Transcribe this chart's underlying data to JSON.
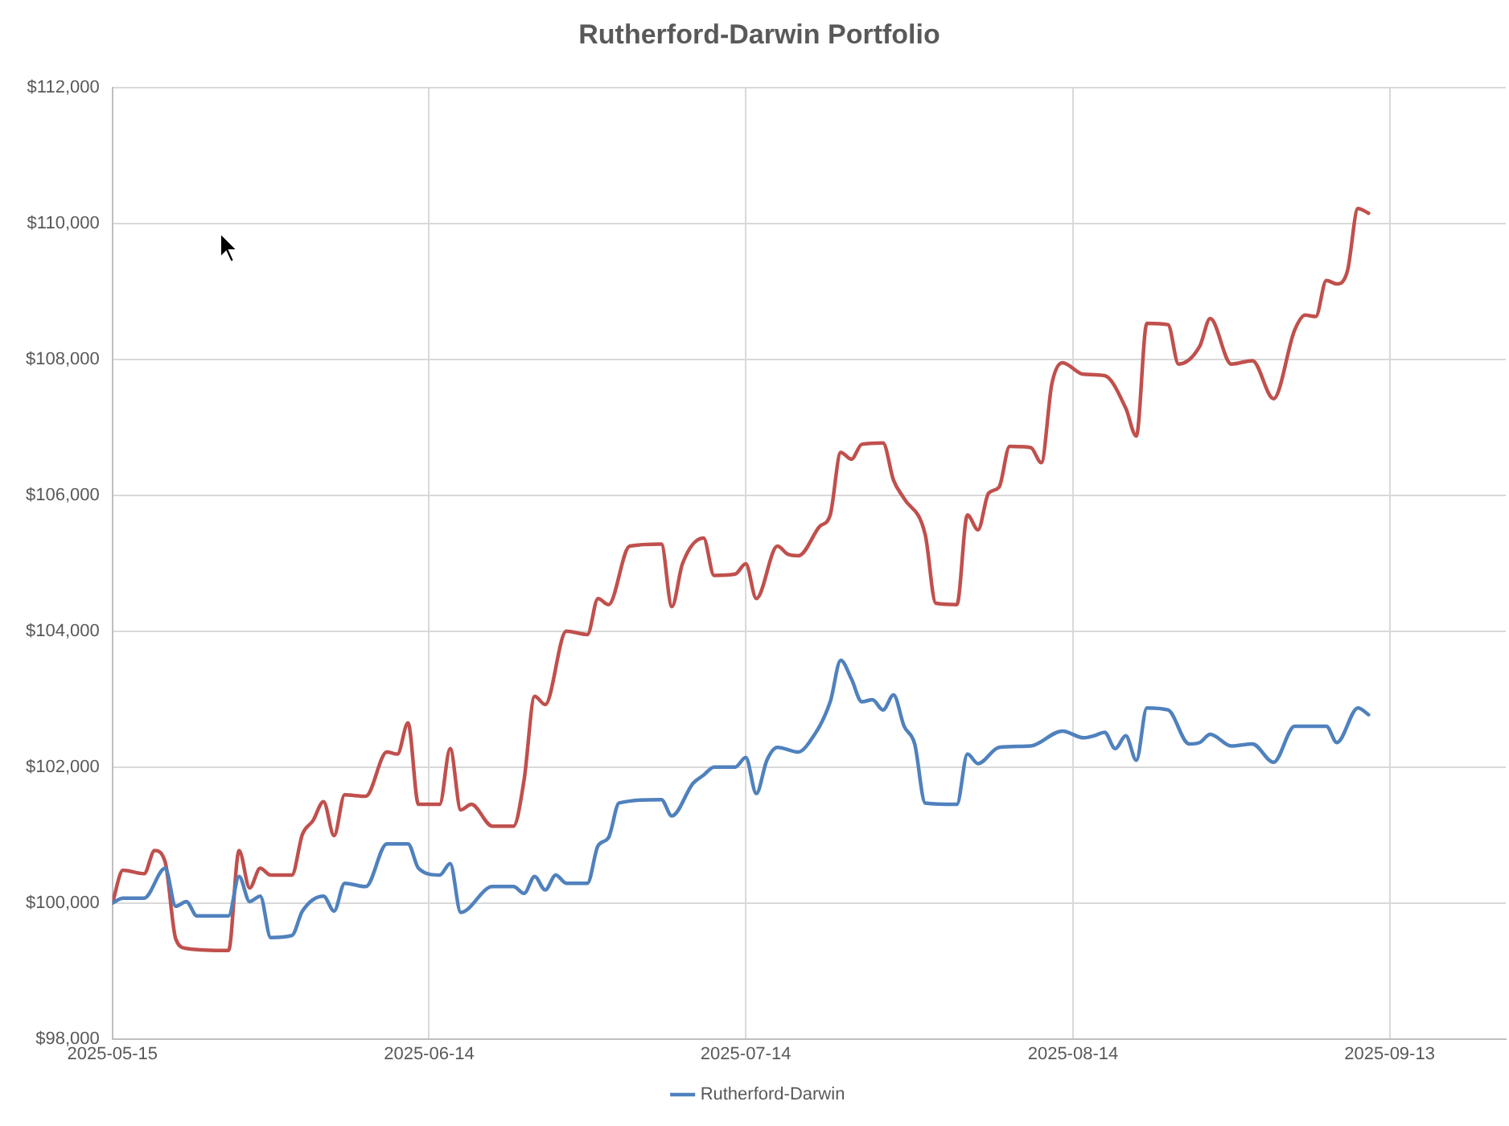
{
  "chart_data": {
    "type": "line",
    "title": "Rutherford-Darwin Portfolio",
    "xlim": [
      "2025-05-15",
      "2025-09-24"
    ],
    "xticks": [
      "2025-05-15",
      "2025-06-14",
      "2025-07-14",
      "2025-08-14",
      "2025-09-13"
    ],
    "ylim": [
      98000,
      112000
    ],
    "yticks": [
      {
        "value": 98000,
        "label": "$98,000"
      },
      {
        "value": 100000,
        "label": "$100,000"
      },
      {
        "value": 102000,
        "label": "$102,000"
      },
      {
        "value": 104000,
        "label": "$104,000"
      },
      {
        "value": 106000,
        "label": "$106,000"
      },
      {
        "value": 108000,
        "label": "$108,000"
      },
      {
        "value": 110000,
        "label": "$110,000"
      },
      {
        "value": 112000,
        "label": "$112,000"
      }
    ],
    "grid": true,
    "legend": "bottom",
    "marker": "none",
    "line_style": "solid",
    "series": [
      {
        "name": "Rutherford-Darwin",
        "color": "#4f81bd",
        "x": [
          "2025-05-15",
          "2025-05-16",
          "2025-05-18",
          "2025-05-20",
          "2025-05-21",
          "2025-05-22",
          "2025-05-23",
          "2025-05-26",
          "2025-05-27",
          "2025-05-28",
          "2025-05-29",
          "2025-05-30",
          "2025-06-01",
          "2025-06-02",
          "2025-06-04",
          "2025-06-05",
          "2025-06-06",
          "2025-06-08",
          "2025-06-10",
          "2025-06-12",
          "2025-06-13",
          "2025-06-15",
          "2025-06-16",
          "2025-06-17",
          "2025-06-20",
          "2025-06-22",
          "2025-06-23",
          "2025-06-24",
          "2025-06-25",
          "2025-06-26",
          "2025-06-27",
          "2025-06-29",
          "2025-06-30",
          "2025-07-01",
          "2025-07-02",
          "2025-07-06",
          "2025-07-07",
          "2025-07-09",
          "2025-07-10",
          "2025-07-11",
          "2025-07-13",
          "2025-07-14",
          "2025-07-15",
          "2025-07-16",
          "2025-07-17",
          "2025-07-19",
          "2025-07-20",
          "2025-07-22",
          "2025-07-23",
          "2025-07-24",
          "2025-07-25",
          "2025-07-26",
          "2025-07-27",
          "2025-07-28",
          "2025-07-29",
          "2025-07-30",
          "2025-07-31",
          "2025-08-03",
          "2025-08-04",
          "2025-08-05",
          "2025-08-07",
          "2025-08-10",
          "2025-08-13",
          "2025-08-15",
          "2025-08-16",
          "2025-08-17",
          "2025-08-18",
          "2025-08-19",
          "2025-08-20",
          "2025-08-21",
          "2025-08-23",
          "2025-08-25",
          "2025-08-26",
          "2025-08-27",
          "2025-08-29",
          "2025-08-31",
          "2025-09-02",
          "2025-09-04",
          "2025-09-07",
          "2025-09-08",
          "2025-09-10",
          "2025-09-11"
        ],
        "values": [
          100000,
          100070,
          100070,
          100510,
          99950,
          100020,
          99810,
          99810,
          100390,
          100020,
          100100,
          99490,
          99520,
          99880,
          100100,
          99880,
          100290,
          100240,
          100870,
          100870,
          100510,
          100410,
          100580,
          99860,
          100240,
          100240,
          100140,
          100390,
          100190,
          100410,
          100290,
          100290,
          100840,
          100960,
          101470,
          101520,
          101280,
          101760,
          101880,
          102000,
          102000,
          102140,
          101610,
          102100,
          102290,
          102220,
          102360,
          102960,
          103570,
          103300,
          102960,
          102990,
          102840,
          103060,
          102600,
          102340,
          101470,
          101450,
          102190,
          102050,
          102290,
          102310,
          102530,
          102430,
          102460,
          102510,
          102270,
          102460,
          102100,
          102870,
          102840,
          102340,
          102360,
          102480,
          102310,
          102340,
          102070,
          102600,
          102600,
          102360,
          102870,
          102770
        ]
      },
      {
        "color": "#c0504d",
        "x": [
          "2025-05-15",
          "2025-05-16",
          "2025-05-18",
          "2025-05-19",
          "2025-05-20",
          "2025-05-21",
          "2025-05-22",
          "2025-05-26",
          "2025-05-27",
          "2025-05-28",
          "2025-05-29",
          "2025-05-30",
          "2025-06-01",
          "2025-06-02",
          "2025-06-03",
          "2025-06-04",
          "2025-06-05",
          "2025-06-06",
          "2025-06-08",
          "2025-06-10",
          "2025-06-11",
          "2025-06-12",
          "2025-06-13",
          "2025-06-15",
          "2025-06-16",
          "2025-06-17",
          "2025-06-18",
          "2025-06-20",
          "2025-06-22",
          "2025-06-23",
          "2025-06-24",
          "2025-06-25",
          "2025-06-27",
          "2025-06-29",
          "2025-06-30",
          "2025-07-01",
          "2025-07-03",
          "2025-07-06",
          "2025-07-07",
          "2025-07-08",
          "2025-07-10",
          "2025-07-11",
          "2025-07-13",
          "2025-07-14",
          "2025-07-15",
          "2025-07-17",
          "2025-07-18",
          "2025-07-19",
          "2025-07-21",
          "2025-07-22",
          "2025-07-23",
          "2025-07-24",
          "2025-07-25",
          "2025-07-27",
          "2025-07-28",
          "2025-07-29",
          "2025-07-31",
          "2025-08-01",
          "2025-08-03",
          "2025-08-04",
          "2025-08-05",
          "2025-08-06",
          "2025-08-07",
          "2025-08-08",
          "2025-08-10",
          "2025-08-11",
          "2025-08-12",
          "2025-08-13",
          "2025-08-15",
          "2025-08-17",
          "2025-08-19",
          "2025-08-20",
          "2025-08-21",
          "2025-08-23",
          "2025-08-24",
          "2025-08-26",
          "2025-08-27",
          "2025-08-29",
          "2025-08-31",
          "2025-09-02",
          "2025-09-04",
          "2025-09-05",
          "2025-09-06",
          "2025-09-07",
          "2025-09-08",
          "2025-09-09",
          "2025-09-10",
          "2025-09-11"
        ],
        "values": [
          100000,
          100480,
          100430,
          100770,
          100600,
          99470,
          99330,
          99300,
          100770,
          100220,
          100510,
          100410,
          100410,
          101010,
          101210,
          101490,
          100990,
          101590,
          101570,
          102220,
          102190,
          102650,
          101450,
          101450,
          102270,
          101370,
          101450,
          101130,
          101130,
          101810,
          103040,
          102920,
          104000,
          103950,
          104480,
          104390,
          105250,
          105280,
          104360,
          104990,
          105370,
          104820,
          104840,
          104990,
          104480,
          105250,
          105130,
          105110,
          105540,
          105710,
          106630,
          106530,
          106750,
          106770,
          106220,
          105950,
          105420,
          104410,
          104390,
          105710,
          105490,
          106030,
          106120,
          106720,
          106700,
          106480,
          107640,
          107950,
          107780,
          107760,
          107280,
          106870,
          108530,
          108510,
          107930,
          108190,
          108600,
          107930,
          107980,
          107420,
          108430,
          108650,
          108630,
          109160,
          109110,
          109300,
          110220,
          110150
        ]
      }
    ]
  }
}
